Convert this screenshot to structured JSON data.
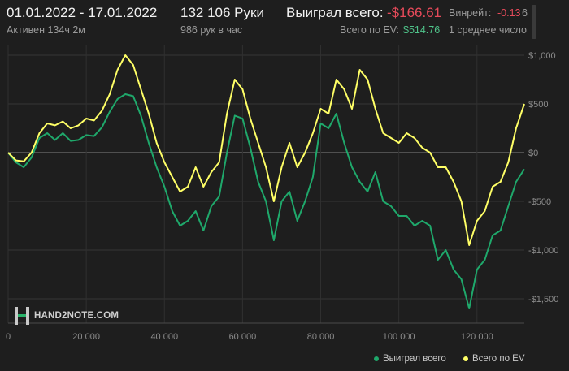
{
  "header": {
    "date_range": "01.01.2022 - 17.01.2022",
    "active_time": "Активен 134ч 2м",
    "hands": "132 106 Руки",
    "hands_per_hour": "986 рук в час",
    "total_won_label": "Выиграл всего:",
    "total_won_value": "-$166.61",
    "total_ev_label": "Всего по EV:",
    "total_ev_value": "$514.76",
    "winrate_label": "Винрейт:",
    "winrate_value": "-0.13",
    "winrate_unit_cut": "6",
    "avg_label": "1 среднее число"
  },
  "logo": {
    "text": "HAND2NOTE.COM"
  },
  "colors": {
    "won": "#1fa86b",
    "ev": "#ffff66",
    "negative": "#e64a5a",
    "positive": "#4fc38a"
  },
  "chart_data": {
    "type": "line",
    "xlim": [
      0,
      132106
    ],
    "ylim": [
      -1750,
      1100
    ],
    "x_ticks": [
      0,
      20000,
      40000,
      60000,
      80000,
      100000,
      120000
    ],
    "x_tick_labels": [
      "0",
      "20 000",
      "40 000",
      "60 000",
      "80 000",
      "100 000",
      "120 000"
    ],
    "y_ticks": [
      1000,
      500,
      0,
      -500,
      -1000,
      -1500
    ],
    "y_tick_labels": [
      "$1,000",
      "$500",
      "$0",
      "-$500",
      "-$1,000",
      "-$1,500"
    ],
    "grid": true,
    "legend_position": "bottom-right",
    "series": [
      {
        "name": "Выиграл всего",
        "color": "#1fa86b",
        "x": [
          0,
          2000,
          4000,
          6000,
          8000,
          10000,
          12000,
          14000,
          16000,
          18000,
          20000,
          22000,
          24000,
          26000,
          28000,
          30000,
          32000,
          34000,
          36000,
          38000,
          40000,
          42000,
          44000,
          46000,
          48000,
          50000,
          52000,
          54000,
          56000,
          58000,
          60000,
          62000,
          64000,
          66000,
          68000,
          70000,
          72000,
          74000,
          76000,
          78000,
          80000,
          82000,
          84000,
          86000,
          88000,
          90000,
          92000,
          94000,
          96000,
          98000,
          100000,
          102000,
          104000,
          106000,
          108000,
          110000,
          112000,
          114000,
          116000,
          118000,
          120000,
          122000,
          124000,
          126000,
          128000,
          130000,
          132106
        ],
        "y": [
          0,
          -100,
          -150,
          -50,
          150,
          200,
          130,
          200,
          120,
          130,
          180,
          170,
          260,
          420,
          550,
          600,
          580,
          380,
          100,
          -150,
          -350,
          -600,
          -750,
          -700,
          -600,
          -800,
          -550,
          -450,
          0,
          380,
          350,
          50,
          -300,
          -500,
          -900,
          -500,
          -400,
          -700,
          -500,
          -250,
          300,
          250,
          400,
          100,
          -150,
          -300,
          -400,
          -200,
          -500,
          -550,
          -650,
          -650,
          -750,
          -700,
          -750,
          -1100,
          -1000,
          -1200,
          -1300,
          -1600,
          -1200,
          -1100,
          -850,
          -800,
          -550,
          -300,
          -170
        ]
      },
      {
        "name": "Всего по EV",
        "color": "#ffff66",
        "x": [
          0,
          2000,
          4000,
          6000,
          8000,
          10000,
          12000,
          14000,
          16000,
          18000,
          20000,
          22000,
          24000,
          26000,
          28000,
          30000,
          32000,
          34000,
          36000,
          38000,
          40000,
          42000,
          44000,
          46000,
          48000,
          50000,
          52000,
          54000,
          56000,
          58000,
          60000,
          62000,
          64000,
          66000,
          68000,
          70000,
          72000,
          74000,
          76000,
          78000,
          80000,
          82000,
          84000,
          86000,
          88000,
          90000,
          92000,
          94000,
          96000,
          98000,
          100000,
          102000,
          104000,
          106000,
          108000,
          110000,
          112000,
          114000,
          116000,
          118000,
          120000,
          122000,
          124000,
          126000,
          128000,
          130000,
          132106
        ],
        "y": [
          0,
          -80,
          -90,
          0,
          200,
          300,
          280,
          320,
          250,
          280,
          350,
          330,
          430,
          600,
          850,
          1000,
          900,
          650,
          400,
          100,
          -100,
          -250,
          -400,
          -350,
          -150,
          -350,
          -200,
          -100,
          400,
          750,
          650,
          350,
          100,
          -150,
          -500,
          -150,
          100,
          -150,
          0,
          200,
          450,
          400,
          750,
          650,
          450,
          850,
          750,
          450,
          200,
          150,
          100,
          200,
          150,
          50,
          0,
          -150,
          -150,
          -300,
          -500,
          -950,
          -700,
          -600,
          -350,
          -300,
          -100,
          250,
          500
        ]
      }
    ]
  }
}
